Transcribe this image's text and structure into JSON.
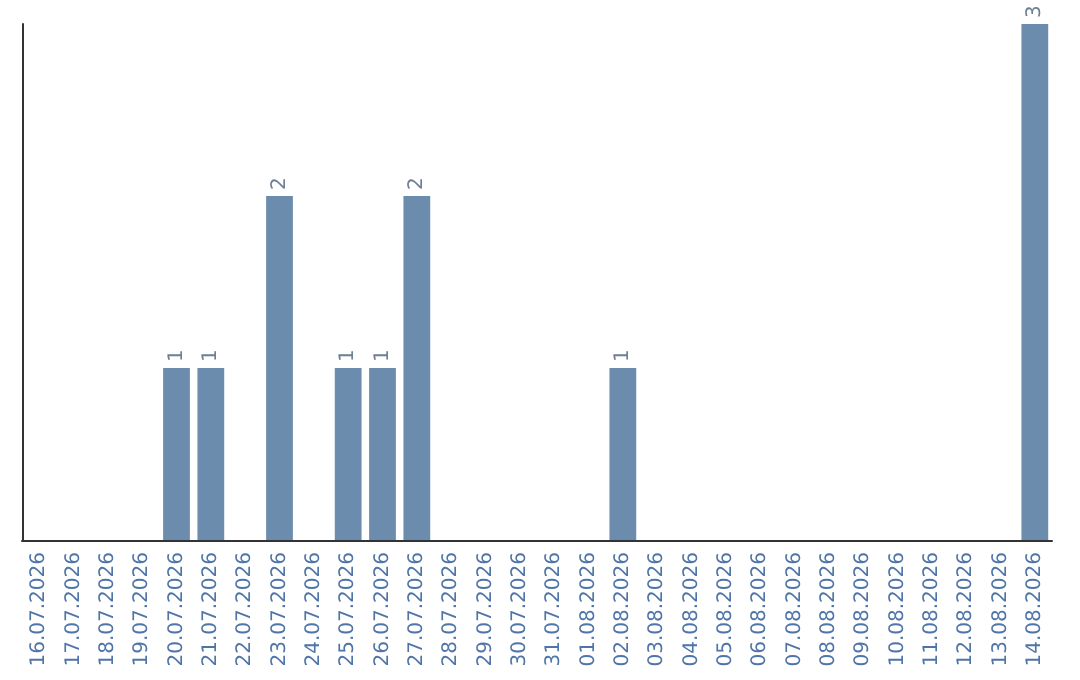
{
  "chart_data": {
    "type": "bar",
    "categories": [
      "16.07.2026",
      "17.07.2026",
      "18.07.2026",
      "19.07.2026",
      "20.07.2026",
      "21.07.2026",
      "22.07.2026",
      "23.07.2026",
      "24.07.2026",
      "25.07.2026",
      "26.07.2026",
      "27.07.2026",
      "28.07.2026",
      "29.07.2026",
      "30.07.2026",
      "31.07.2026",
      "01.08.2026",
      "02.08.2026",
      "03.08.2026",
      "04.08.2026",
      "05.08.2026",
      "06.08.2026",
      "07.08.2026",
      "08.08.2026",
      "09.08.2026",
      "10.08.2026",
      "11.08.2026",
      "12.08.2026",
      "13.08.2026",
      "14.08.2026"
    ],
    "values": [
      0,
      0,
      0,
      0,
      1,
      1,
      0,
      2,
      0,
      1,
      1,
      2,
      0,
      0,
      0,
      0,
      0,
      1,
      0,
      0,
      0,
      0,
      0,
      0,
      0,
      0,
      0,
      0,
      0,
      3
    ],
    "value_labels": [
      null,
      null,
      null,
      null,
      "1",
      "1",
      null,
      "2",
      null,
      "1",
      "1",
      "2",
      null,
      null,
      null,
      null,
      null,
      "1",
      null,
      null,
      null,
      null,
      null,
      null,
      null,
      null,
      null,
      null,
      null,
      "3"
    ],
    "color": "#6b8cad",
    "tick_labels": "x"
  }
}
